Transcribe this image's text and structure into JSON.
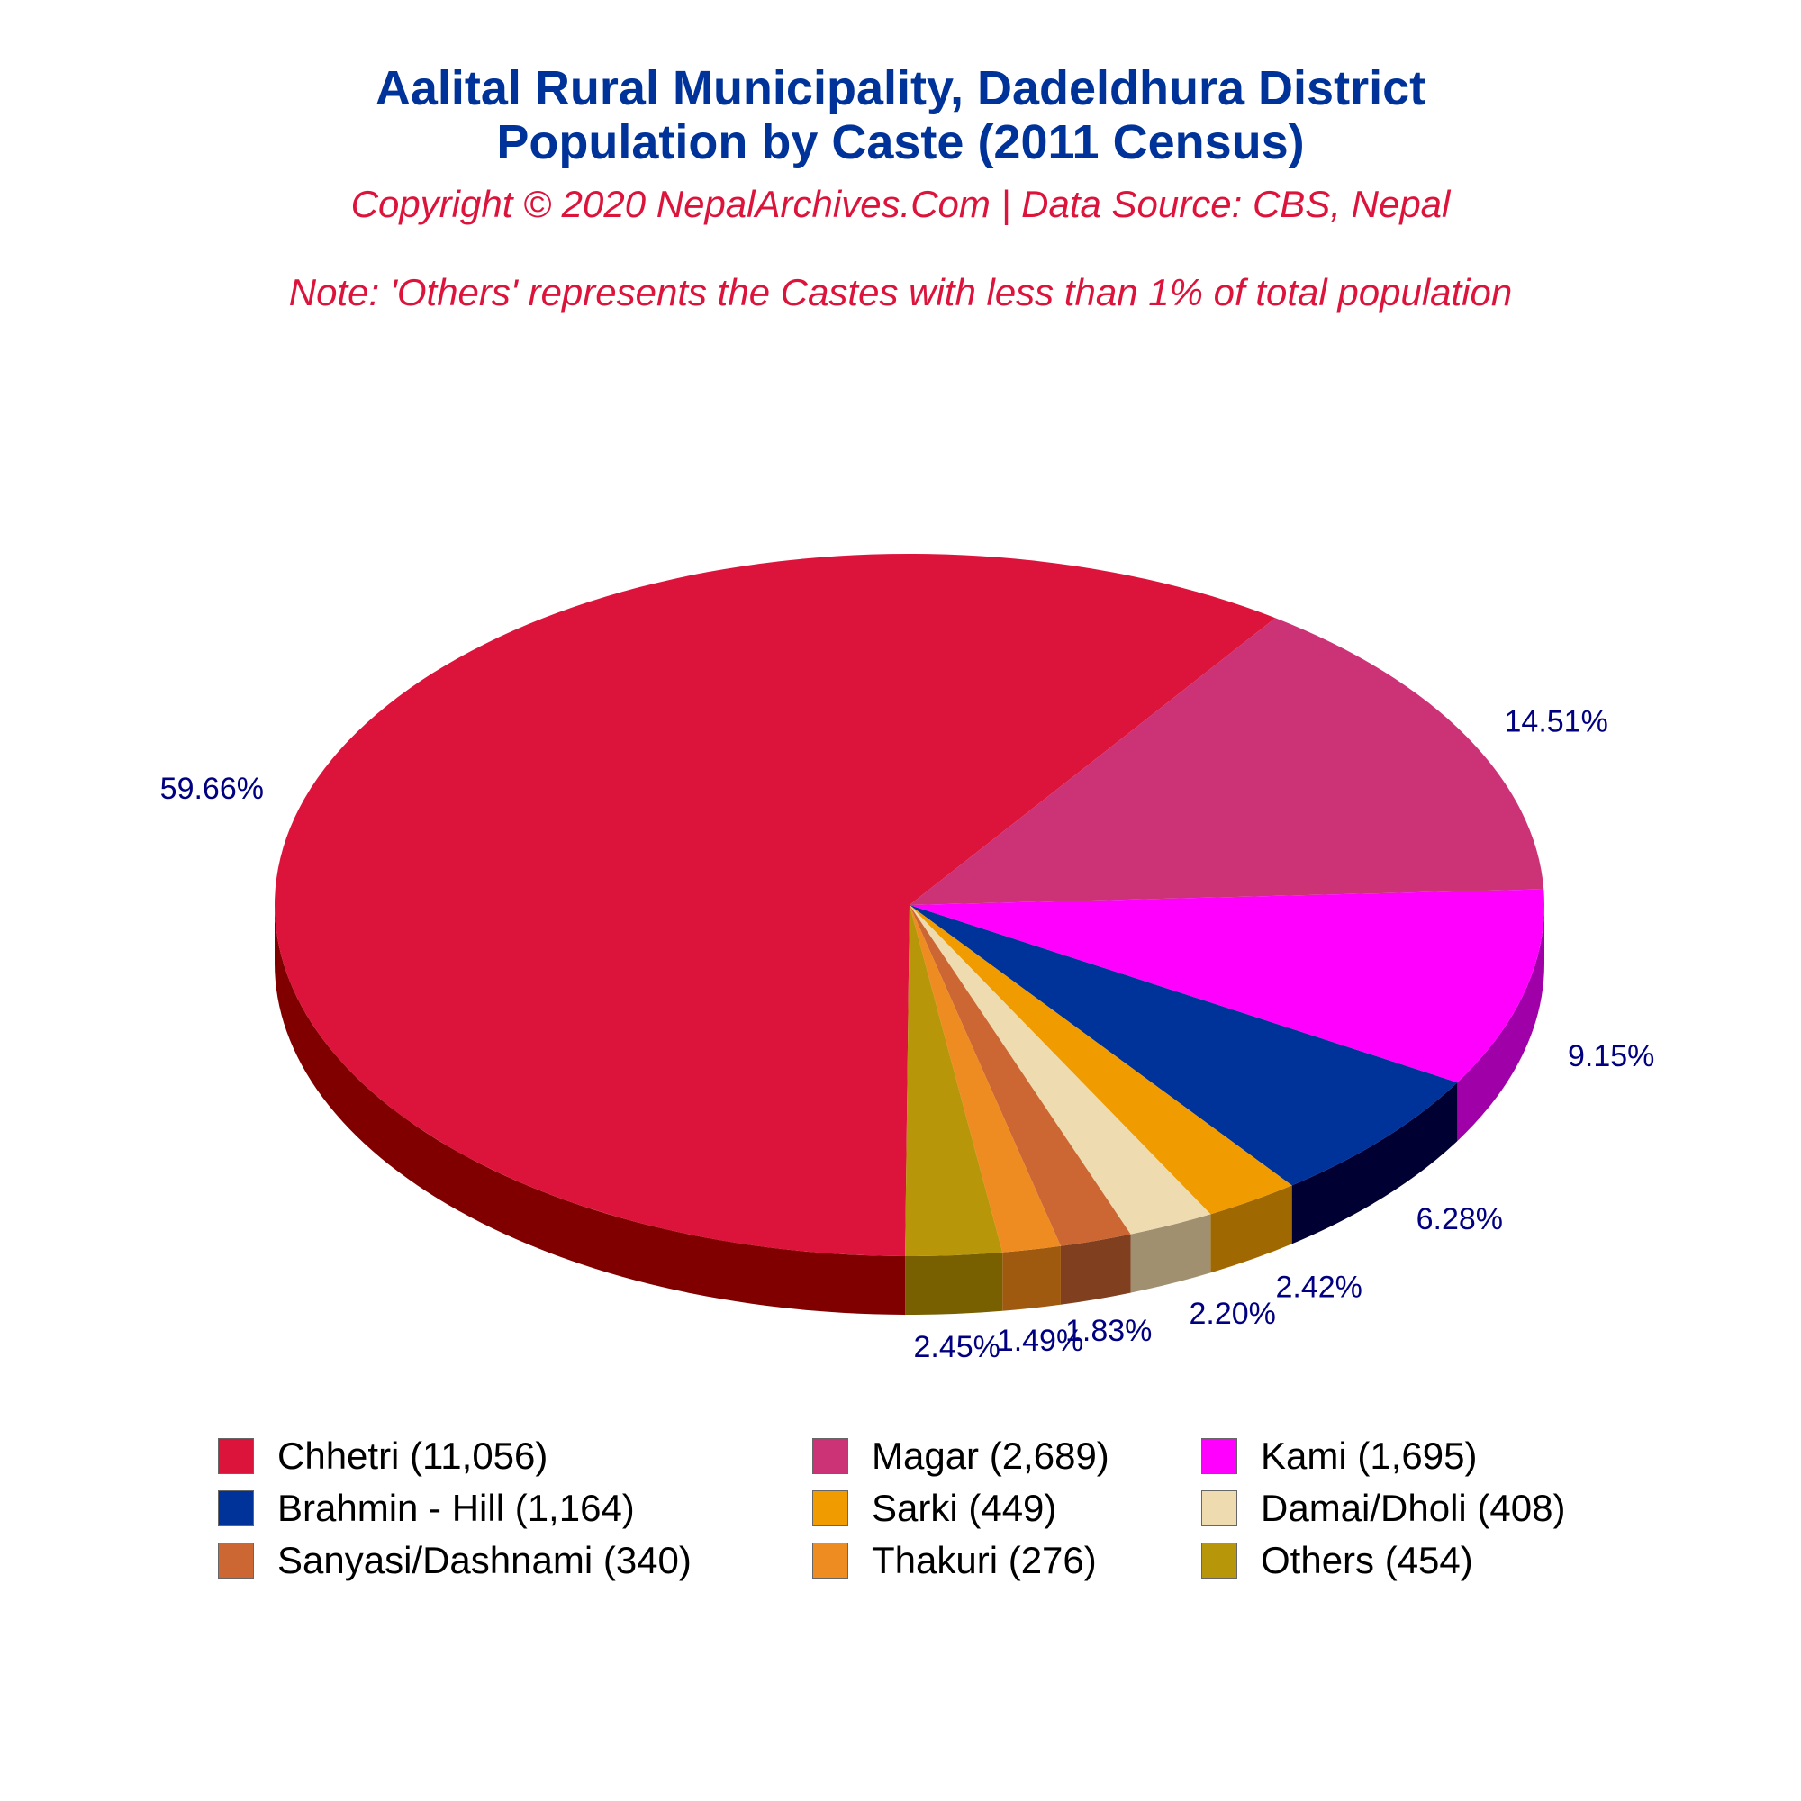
{
  "header": {
    "title_line1": "Aalital Rural Municipality, Dadeldhura District",
    "title_line2": "Population by Caste (2011 Census)",
    "copyright": "Copyright © 2020 NepalArchives.Com | Data Source: CBS, Nepal",
    "note": "Note: 'Others' represents the Castes with less than 1% of total population"
  },
  "chart_data": {
    "type": "pie",
    "style": "3d",
    "legend_position": "bottom",
    "categories": [
      "Chhetri",
      "Magar",
      "Kami",
      "Brahmin - Hill",
      "Sarki",
      "Damai/Dholi",
      "Sanyasi/Dashnami",
      "Thakuri",
      "Others"
    ],
    "values": [
      11056,
      2689,
      1695,
      1164,
      449,
      408,
      340,
      276,
      454
    ],
    "percent_labels": [
      "59.66%",
      "14.51%",
      "9.15%",
      "6.28%",
      "2.42%",
      "2.20%",
      "1.83%",
      "1.49%",
      "2.45%"
    ],
    "legend_labels": [
      "Chhetri (11,056)",
      "Magar (2,689)",
      "Kami (1,695)",
      "Brahmin - Hill (1,164)",
      "Sarki (449)",
      "Damai/Dholi (408)",
      "Sanyasi/Dashnami (340)",
      "Thakuri (276)",
      "Others (454)"
    ],
    "colors": [
      "#dc143c",
      "#cc3377",
      "#ff00ff",
      "#003399",
      "#f09c00",
      "#eedcb0",
      "#cc6633",
      "#ee8c22",
      "#b8960a"
    ],
    "side_colors": [
      "#800000",
      "#700020",
      "#a000a8",
      "#000033",
      "#a06800",
      "#a09070",
      "#804020",
      "#a05a10",
      "#786000"
    ]
  }
}
